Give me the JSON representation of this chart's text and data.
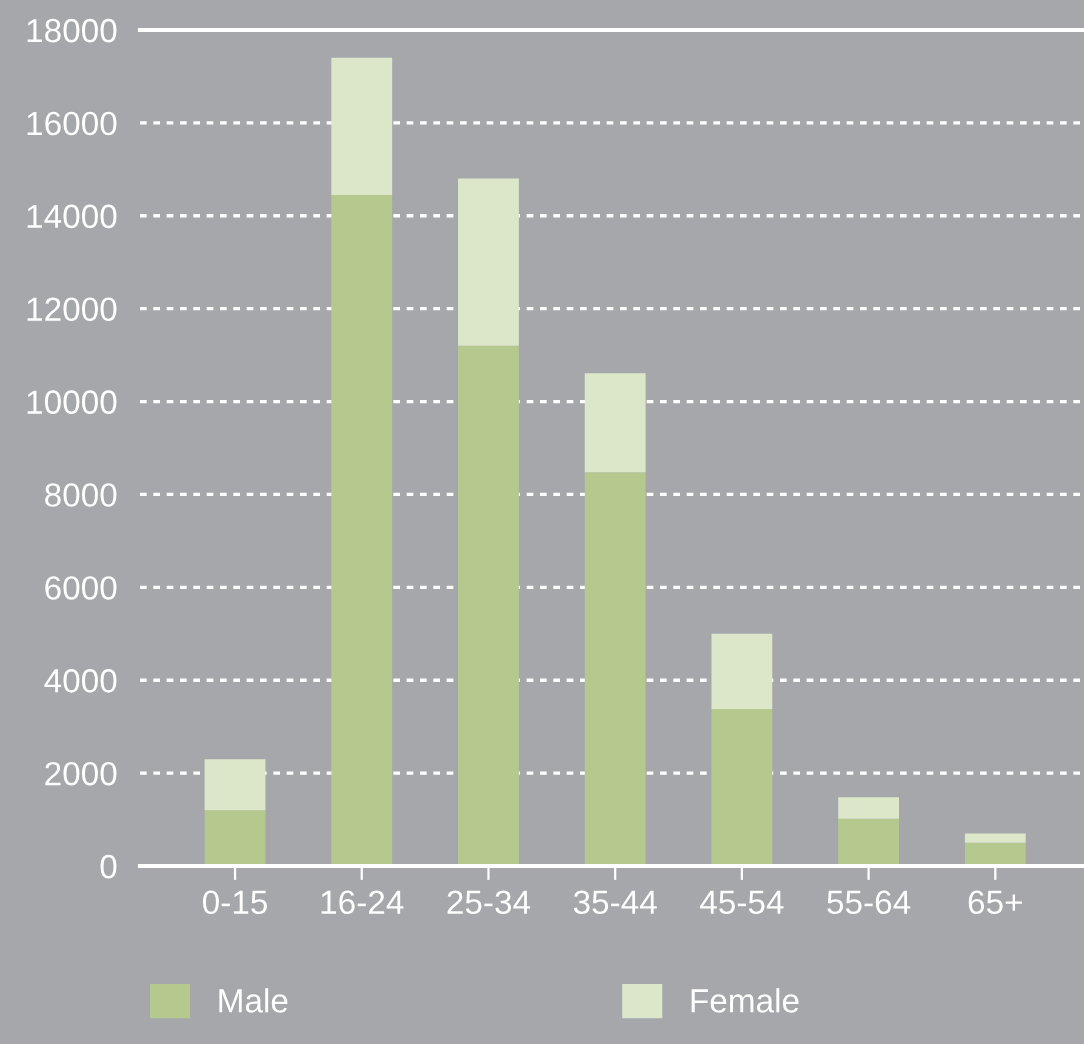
{
  "chart_data": {
    "type": "bar",
    "stacked": true,
    "categories": [
      "0-15",
      "16-24",
      "25-34",
      "35-44",
      "45-54",
      "55-64",
      "65+"
    ],
    "series": [
      {
        "name": "Male",
        "color": "#b5c98e",
        "values": [
          1200,
          14450,
          11200,
          8480,
          3380,
          1020,
          500
        ]
      },
      {
        "name": "Female",
        "color": "#dce7c9",
        "values": [
          1100,
          2950,
          3600,
          2130,
          1620,
          460,
          200
        ]
      }
    ],
    "ylim": [
      0,
      18000
    ],
    "yticks": [
      0,
      2000,
      4000,
      6000,
      8000,
      10000,
      12000,
      14000,
      16000,
      18000
    ],
    "grid": "y",
    "legend": "bottom"
  }
}
